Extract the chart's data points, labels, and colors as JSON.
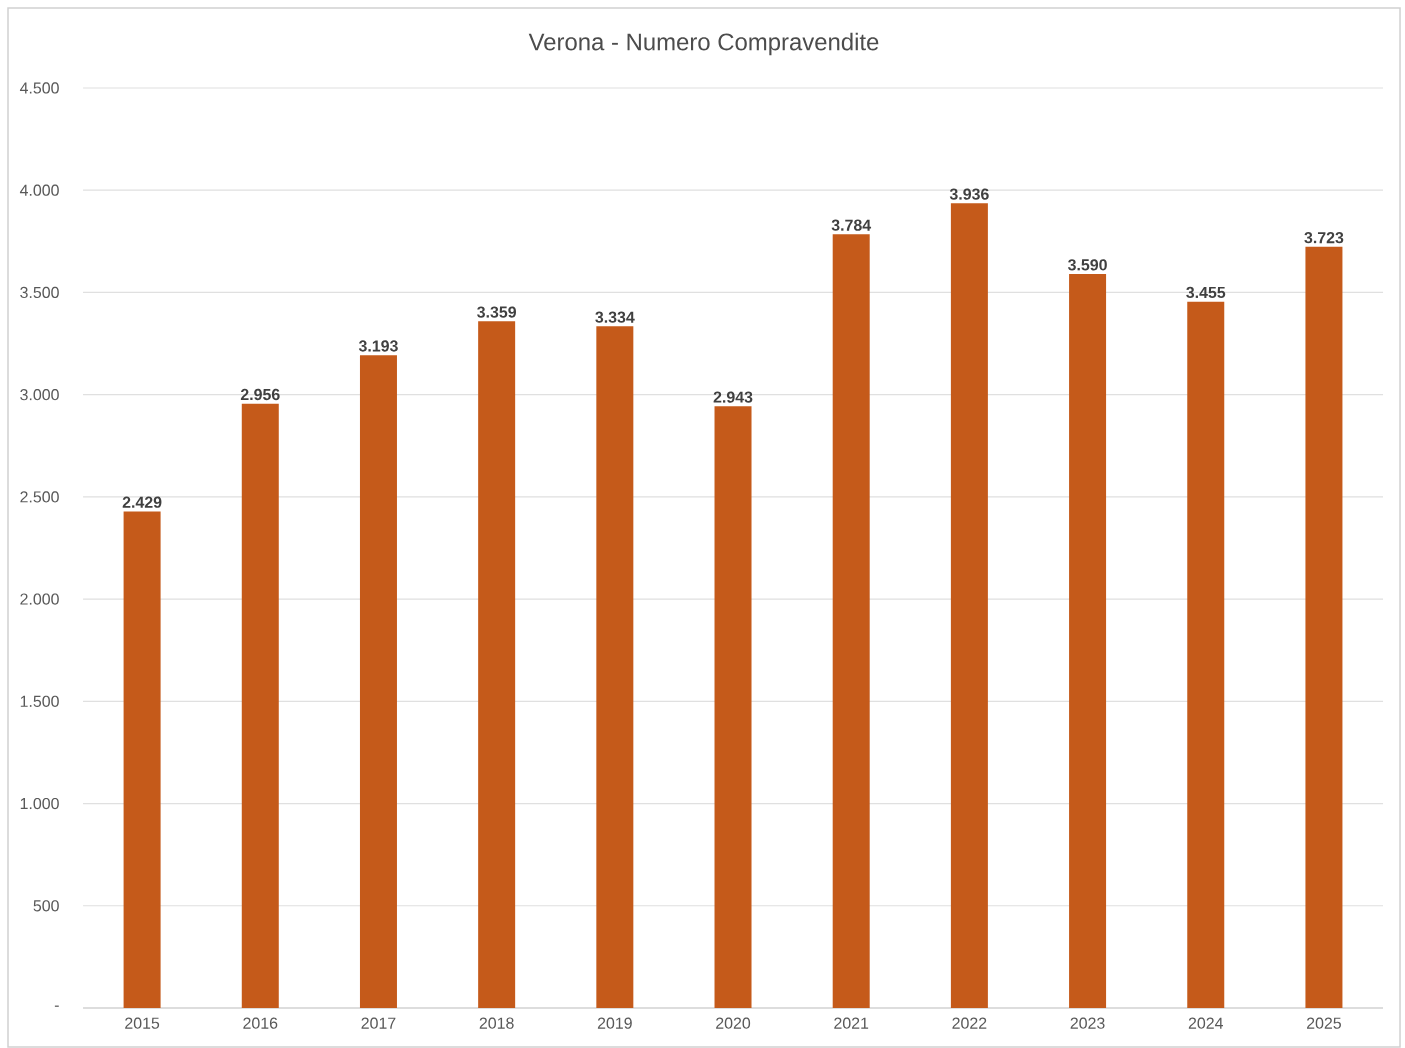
{
  "chart_data": {
    "type": "bar",
    "title": "Verona - Numero Compravendite",
    "categories": [
      "2015",
      "2016",
      "2017",
      "2018",
      "2019",
      "2020",
      "2021",
      "2022",
      "2023",
      "2024",
      "2025"
    ],
    "values": [
      2429,
      2956,
      3193,
      3359,
      3334,
      2943,
      3784,
      3936,
      3590,
      3455,
      3723
    ],
    "value_labels": [
      "2.429",
      "2.956",
      "3.193",
      "3.359",
      "3.334",
      "2.943",
      "3.784",
      "3.936",
      "3.590",
      "3.455",
      "3.723"
    ],
    "color": "#c55a1a",
    "ylim": [
      0,
      4500
    ],
    "yticks": [
      {
        "value": 0,
        "label": "-"
      },
      500,
      {
        "value": 1000,
        "label": "1.000"
      },
      {
        "value": 1500,
        "label": "1.500"
      },
      {
        "value": 2000,
        "label": "2.000"
      },
      {
        "value": 2500,
        "label": "2.500"
      },
      {
        "value": 3000,
        "label": "3.000"
      },
      {
        "value": 3500,
        "label": "3.500"
      },
      {
        "value": 4000,
        "label": "4.000"
      },
      {
        "value": 4500,
        "label": "4.500"
      }
    ],
    "grid": "y"
  }
}
